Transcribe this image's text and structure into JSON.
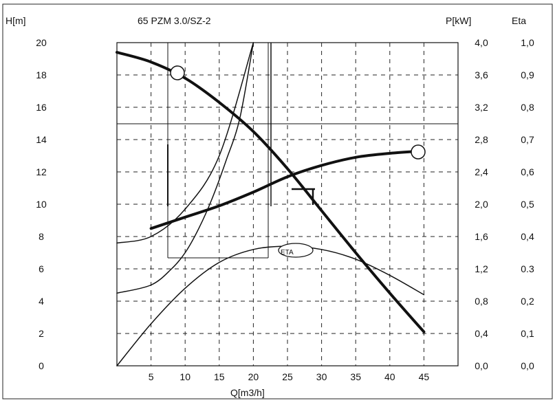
{
  "chart_data": {
    "type": "line",
    "title": "65 PZM 3.0/SZ-2",
    "xlabel": "Q[m3/h]",
    "y_left_label": "H[m]",
    "y_right1_label": "P[kW]",
    "y_right2_label": "Eta",
    "xlim": [
      0,
      50
    ],
    "y_left_lim": [
      0,
      20
    ],
    "y_right1_lim": [
      0.0,
      4.0
    ],
    "y_right2_lim": [
      0.0,
      1.0
    ],
    "grid": true,
    "x_ticks": [
      "5",
      "10",
      "15",
      "20",
      "25",
      "30",
      "35",
      "40",
      "45"
    ],
    "y_left_ticks": [
      "0",
      "2",
      "4",
      "6",
      "8",
      "10",
      "12",
      "14",
      "16",
      "18",
      "20"
    ],
    "y_right1_ticks": [
      "0,0",
      "0,4",
      "0,8",
      "1,2",
      "1,6",
      "2,0",
      "2,4",
      "2,8",
      "3,2",
      "3,6",
      "4,0"
    ],
    "y_right2_ticks": [
      "0,0",
      "0,1",
      "0,2",
      "0.3",
      "0,4",
      "0,5",
      "0,6",
      "0,7",
      "0,8",
      "0,9",
      "1,0"
    ],
    "annotation_eta": "ETA",
    "series": [
      {
        "axis": "H",
        "style": "thick",
        "x": [
          0,
          5,
          10,
          15,
          20,
          25,
          30,
          35,
          40,
          45
        ],
        "y": [
          19.4,
          18.8,
          17.8,
          16.3,
          14.5,
          12.2,
          9.6,
          7.0,
          4.5,
          2.1
        ]
      },
      {
        "axis": "P",
        "style": "thick",
        "x": [
          5,
          10,
          15,
          20,
          25,
          30,
          35,
          40,
          45
        ],
        "y": [
          1.7,
          1.84,
          1.98,
          2.15,
          2.34,
          2.48,
          2.58,
          2.63,
          2.66
        ]
      },
      {
        "axis": "Eta",
        "style": "thin",
        "x": [
          0,
          5,
          10,
          15,
          20,
          25,
          30,
          35,
          40,
          45
        ],
        "y": [
          0.0,
          0.13,
          0.24,
          0.32,
          0.36,
          0.37,
          0.36,
          0.33,
          0.28,
          0.22
        ]
      },
      {
        "axis": "H",
        "style": "thin",
        "x": [
          0,
          5,
          8,
          10,
          12,
          14,
          16,
          18,
          20
        ],
        "y": [
          4.5,
          5.0,
          6.0,
          7.0,
          8.5,
          10.4,
          12.7,
          15.3,
          20.0
        ]
      },
      {
        "axis": "H",
        "style": "thin",
        "x": [
          0,
          5,
          10,
          15,
          20
        ],
        "y": [
          7.6,
          8.0,
          9.7,
          13.0,
          20.0
        ]
      }
    ]
  }
}
